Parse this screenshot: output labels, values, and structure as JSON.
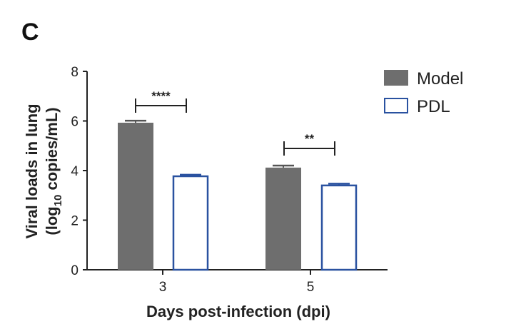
{
  "panel_label": "C",
  "chart_data": {
    "type": "bar",
    "categories": [
      "3",
      "5"
    ],
    "series": [
      {
        "name": "Model",
        "values": [
          5.93,
          4.12
        ],
        "errors": [
          0.08,
          0.08
        ],
        "color": "#6e6e6e",
        "style": "filled"
      },
      {
        "name": "PDL",
        "values": [
          3.77,
          3.4
        ],
        "errors": [
          0.06,
          0.07
        ],
        "color": "#2a52a0",
        "style": "outline"
      }
    ],
    "significance": [
      {
        "category": "3",
        "label": "****"
      },
      {
        "category": "5",
        "label": "**"
      }
    ],
    "xlabel": "Days post-infection (dpi)",
    "ylabel_line1": "Viral loads in lung",
    "ylabel_line2_prefix": "(log",
    "ylabel_line2_sub": "10",
    "ylabel_line2_suffix": " copies/mL)",
    "ylim": [
      0,
      8
    ],
    "yticks": [
      "0",
      "2",
      "4",
      "6",
      "8"
    ],
    "legend_position": "top-right"
  }
}
